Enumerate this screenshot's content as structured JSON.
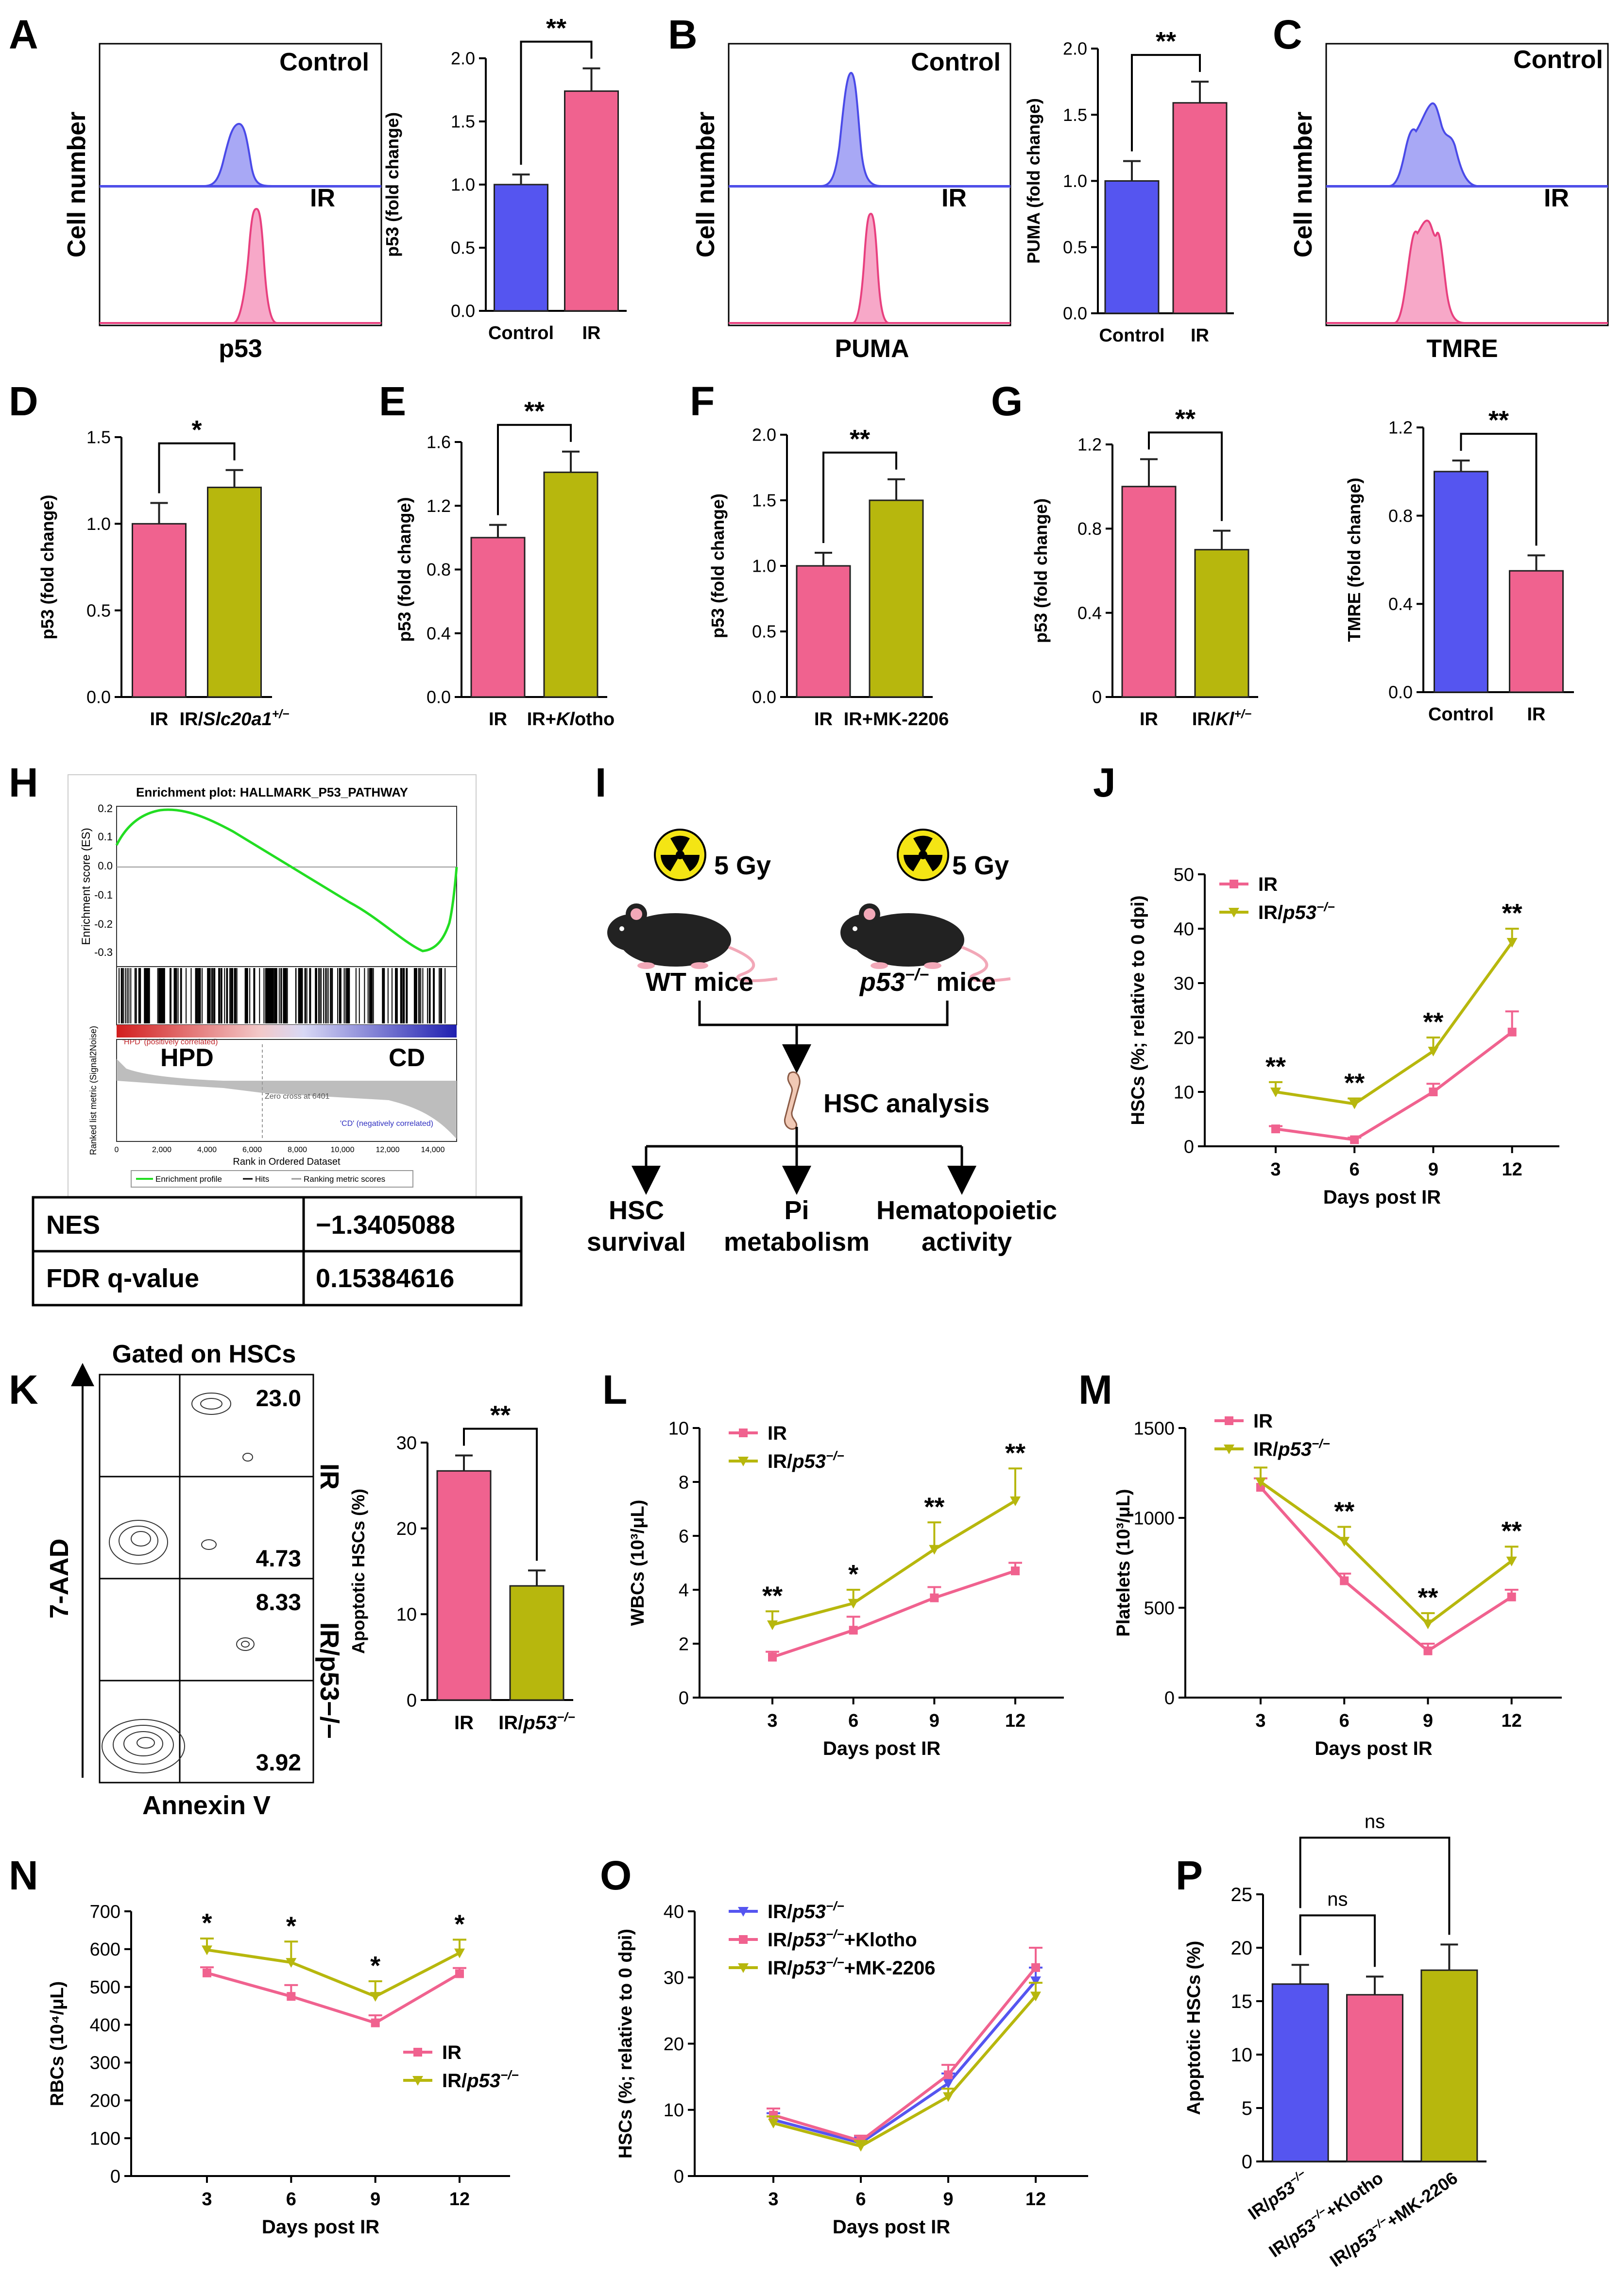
{
  "panel_letters": {
    "A": "A",
    "B": "B",
    "C": "C",
    "D": "D",
    "E": "E",
    "F": "F",
    "G": "G",
    "H": "H",
    "I": "I",
    "J": "J",
    "K": "K",
    "L": "L",
    "M": "M",
    "N": "N",
    "O": "O",
    "P": "P"
  },
  "colors": {
    "blue": "#5555f0",
    "pink": "#f0628f",
    "olive": "#b7b70d",
    "green": "#22dd22",
    "darkred": "#c0262b",
    "navy": "#2020a0"
  },
  "histograms": {
    "p53": {
      "xlabel": "p53",
      "ylabel": "Cell number",
      "top": "Control",
      "bottom": "IR"
    },
    "puma": {
      "xlabel": "PUMA",
      "ylabel": "Cell number",
      "top": "Control",
      "bottom": "IR"
    },
    "tmre": {
      "xlabel": "TMRE",
      "ylabel": "Cell number",
      "top": "Control",
      "bottom": "IR"
    }
  },
  "chart_data": [
    {
      "id": "A_bar",
      "type": "bar",
      "ylabel": "p53 (fold change)",
      "categories": [
        "Control",
        "IR"
      ],
      "values": [
        1.0,
        1.74
      ],
      "errors": [
        0.08,
        0.18
      ],
      "colors": [
        "#5555f0",
        "#f0628f"
      ],
      "ylim": [
        0,
        2.0
      ],
      "yticks": [
        "0.0",
        "0.5",
        "1.0",
        "1.5",
        "2.0"
      ],
      "sig": "**"
    },
    {
      "id": "B_bar",
      "type": "bar",
      "ylabel": "PUMA (fold change)",
      "categories": [
        "Control",
        "IR"
      ],
      "values": [
        1.0,
        1.59
      ],
      "errors": [
        0.15,
        0.16
      ],
      "colors": [
        "#5555f0",
        "#f0628f"
      ],
      "ylim": [
        0,
        2.0
      ],
      "yticks": [
        "0.0",
        "0.5",
        "1.0",
        "1.5",
        "2.0"
      ],
      "sig": "**"
    },
    {
      "id": "D_bar",
      "type": "bar",
      "ylabel": "p53 (fold change)",
      "categories": [
        "IR",
        "IR/Slc20a1+/−"
      ],
      "values": [
        1.0,
        1.21
      ],
      "errors": [
        0.12,
        0.1
      ],
      "colors": [
        "#f0628f",
        "#b7b70d"
      ],
      "ylim": [
        0,
        1.5
      ],
      "yticks": [
        "0.0",
        "0.5",
        "1.0",
        "1.5"
      ],
      "sig": "*"
    },
    {
      "id": "E_bar",
      "type": "bar",
      "ylabel": "p53 (fold change)",
      "categories": [
        "IR",
        "IR+Klotho"
      ],
      "values": [
        1.0,
        1.41
      ],
      "errors": [
        0.08,
        0.13
      ],
      "colors": [
        "#f0628f",
        "#b7b70d"
      ],
      "ylim": [
        0,
        1.6
      ],
      "yticks": [
        "0.0",
        "0.4",
        "0.8",
        "1.2",
        "1.6"
      ],
      "sig": "**"
    },
    {
      "id": "F_bar",
      "type": "bar",
      "ylabel": "p53 (fold change)",
      "categories": [
        "IR",
        "IR+MK-2206"
      ],
      "values": [
        1.0,
        1.5
      ],
      "errors": [
        0.1,
        0.16
      ],
      "colors": [
        "#f0628f",
        "#b7b70d"
      ],
      "ylim": [
        0,
        2.0
      ],
      "yticks": [
        "0.0",
        "0.5",
        "1.0",
        "1.5",
        "2.0"
      ],
      "sig": "**"
    },
    {
      "id": "G_bar",
      "type": "bar",
      "ylabel": "p53 (fold change)",
      "categories": [
        "IR",
        "IR/Kl+/−"
      ],
      "values": [
        1.0,
        0.7
      ],
      "errors": [
        0.13,
        0.09
      ],
      "colors": [
        "#f0628f",
        "#b7b70d"
      ],
      "ylim": [
        0,
        1.2
      ],
      "yticks": [
        "0",
        "0.4",
        "0.8",
        "1.2"
      ],
      "sig": "**"
    },
    {
      "id": "C_bar",
      "type": "bar",
      "ylabel": "TMRE (fold change)",
      "categories": [
        "Control",
        "IR"
      ],
      "values": [
        1.0,
        0.55
      ],
      "errors": [
        0.05,
        0.07
      ],
      "colors": [
        "#5555f0",
        "#f0628f"
      ],
      "ylim": [
        0,
        1.2
      ],
      "yticks": [
        "0.0",
        "0.4",
        "0.8",
        "1.2"
      ],
      "sig": "**"
    },
    {
      "id": "K_bar",
      "type": "bar",
      "ylabel": "Apoptotic HSCs (%)",
      "categories": [
        "IR",
        "IR/p53−/−"
      ],
      "values": [
        26.7,
        13.3
      ],
      "errors": [
        1.8,
        1.8
      ],
      "colors": [
        "#f0628f",
        "#b7b70d"
      ],
      "ylim": [
        0,
        30
      ],
      "yticks": [
        "0",
        "10",
        "20",
        "30"
      ],
      "sig": "**"
    },
    {
      "id": "P_bar",
      "type": "bar",
      "ylabel": "Apoptotic HSCs (%)",
      "categories": [
        "IR/p53−/−",
        "IR/p53−/−+Klotho",
        "IR/p53−/−+MK-2206"
      ],
      "values": [
        16.6,
        15.6,
        17.9
      ],
      "errors": [
        1.8,
        1.7,
        2.4
      ],
      "colors": [
        "#5555f0",
        "#f0628f",
        "#b7b70d"
      ],
      "ylim": [
        0,
        25
      ],
      "yticks": [
        "0",
        "5",
        "10",
        "15",
        "20",
        "25"
      ],
      "sig_labels": [
        "ns",
        "ns"
      ]
    },
    {
      "id": "J_line",
      "type": "line",
      "xlabel": "Days post IR",
      "ylabel": "HSCs (%; relative to 0 dpi)",
      "x": [
        "3",
        "6",
        "9",
        "12"
      ],
      "ylim": [
        0,
        50
      ],
      "yticks": [
        "0",
        "10",
        "20",
        "30",
        "40",
        "50"
      ],
      "series": [
        {
          "name": "IR",
          "values": [
            3.2,
            1.2,
            10.0,
            21.0
          ],
          "errors": [
            0.5,
            0.4,
            1.5,
            3.8
          ]
        },
        {
          "name": "IR/p53−/−",
          "values": [
            10.0,
            7.8,
            17.5,
            37.5
          ],
          "errors": [
            1.8,
            1.0,
            2.5,
            2.5
          ]
        }
      ],
      "sig": [
        "**",
        "**",
        "**",
        "**"
      ]
    },
    {
      "id": "L_line",
      "type": "line",
      "xlabel": "Days post IR",
      "ylabel": "WBCs (10³/μL)",
      "x": [
        "3",
        "6",
        "9",
        "12"
      ],
      "ylim": [
        0,
        10
      ],
      "yticks": [
        "0",
        "2",
        "4",
        "6",
        "8",
        "10"
      ],
      "series": [
        {
          "name": "IR",
          "values": [
            1.5,
            2.5,
            3.7,
            4.7
          ],
          "errors": [
            0.2,
            0.5,
            0.4,
            0.3
          ]
        },
        {
          "name": "IR/p53−/−",
          "values": [
            2.7,
            3.5,
            5.5,
            7.3
          ],
          "errors": [
            0.5,
            0.5,
            1.0,
            1.2
          ]
        }
      ],
      "sig": [
        "**",
        "*",
        "**",
        "**"
      ]
    },
    {
      "id": "M_line",
      "type": "line",
      "xlabel": "Days post IR",
      "ylabel": "Platelets (10³/μL)",
      "x": [
        "3",
        "6",
        "9",
        "12"
      ],
      "ylim": [
        0,
        1500
      ],
      "yticks": [
        "0",
        "500",
        "1000",
        "1500"
      ],
      "series": [
        {
          "name": "IR",
          "values": [
            1170,
            650,
            260,
            560
          ],
          "errors": [
            50,
            40,
            40,
            40
          ]
        },
        {
          "name": "IR/p53−/−",
          "values": [
            1200,
            870,
            410,
            760
          ],
          "errors": [
            80,
            80,
            60,
            80
          ]
        }
      ],
      "sig": [
        "",
        "**",
        "**",
        "**"
      ]
    },
    {
      "id": "N_line",
      "type": "line",
      "xlabel": "Days post IR",
      "ylabel": "RBCs (10⁴/μL)",
      "x": [
        "3",
        "6",
        "9",
        "12"
      ],
      "ylim": [
        0,
        700
      ],
      "yticks": [
        "0",
        "100",
        "200",
        "300",
        "400",
        "500",
        "600",
        "700"
      ],
      "series": [
        {
          "name": "IR",
          "values": [
            537,
            475,
            405,
            535
          ],
          "errors": [
            15,
            30,
            20,
            15
          ]
        },
        {
          "name": "IR/p53−/−",
          "values": [
            598,
            565,
            475,
            590
          ],
          "errors": [
            30,
            55,
            40,
            35
          ]
        }
      ],
      "sig": [
        "*",
        "*",
        "*",
        "*"
      ]
    },
    {
      "id": "O_line",
      "type": "line",
      "xlabel": "Days post IR",
      "ylabel": "HSCs (%; relative to 0 dpi)",
      "x": [
        "3",
        "6",
        "9",
        "12"
      ],
      "ylim": [
        0,
        40
      ],
      "yticks": [
        "0",
        "10",
        "20",
        "30",
        "40"
      ],
      "series": [
        {
          "name": "IR/p53−/−",
          "values": [
            8.5,
            5.0,
            14.0,
            29.5
          ],
          "errors": [
            1,
            0.8,
            1.5,
            2
          ]
        },
        {
          "name": "IR/p53−/−+Klotho",
          "values": [
            9.2,
            5.3,
            15.3,
            31.5
          ],
          "errors": [
            1,
            0.8,
            1.5,
            3
          ]
        },
        {
          "name": "IR/p53−/−+MK-2206",
          "values": [
            8.0,
            4.5,
            12.0,
            27.2
          ],
          "errors": [
            1,
            0.8,
            1.2,
            2
          ]
        }
      ]
    }
  ],
  "gsea": {
    "title": "Enrichment plot: HALLMARK_P53_PATHWAY",
    "es_label": "Enrichment score (ES)",
    "rank_label": "Ranked list metric (Signal2Noise)",
    "xlabel": "Rank in Ordered Dataset",
    "hpd": "HPD",
    "cd": "CD",
    "pos": "'HPD' (positively correlated)",
    "neg": "'CD' (negatively correlated)",
    "zero": "Zero cross at 6401",
    "es_ticks": [
      "0.2",
      "0.1",
      "0.0",
      "-0.1",
      "-0.2",
      "-0.3"
    ],
    "x_ticks": [
      "0",
      "2,000",
      "4,000",
      "6,000",
      "8,000",
      "10,000",
      "12,000",
      "14,000"
    ],
    "legend": [
      "Enrichment profile",
      "Hits",
      "Ranking metric scores"
    ]
  },
  "stats_table": [
    {
      "k": "NES",
      "v": "−1.3405088"
    },
    {
      "k": "FDR q-value",
      "v": "0.15384616"
    }
  ],
  "schematic": {
    "dose_left": "5 Gy",
    "dose_right": "5 Gy",
    "wt": "WT mice",
    "ko_gene": "p53",
    "ko_sup": "−/−",
    "ko_suffix": " mice",
    "analysis": "HSC analysis",
    "out1a": "HSC",
    "out1b": "survival",
    "out2a": "Pi",
    "out2b": "metabolism",
    "out3a": "Hematopoietic",
    "out3b": "activity"
  },
  "flow": {
    "title": "Gated on HSCs",
    "xlabel": "Annexin V",
    "ylabel": "7-AAD",
    "row1_label": "IR",
    "row2_label": "IR/p53−/−",
    "q1_top": "23.0",
    "q1_bot": "4.73",
    "q2_top": "8.33",
    "q2_bot": "3.92"
  }
}
